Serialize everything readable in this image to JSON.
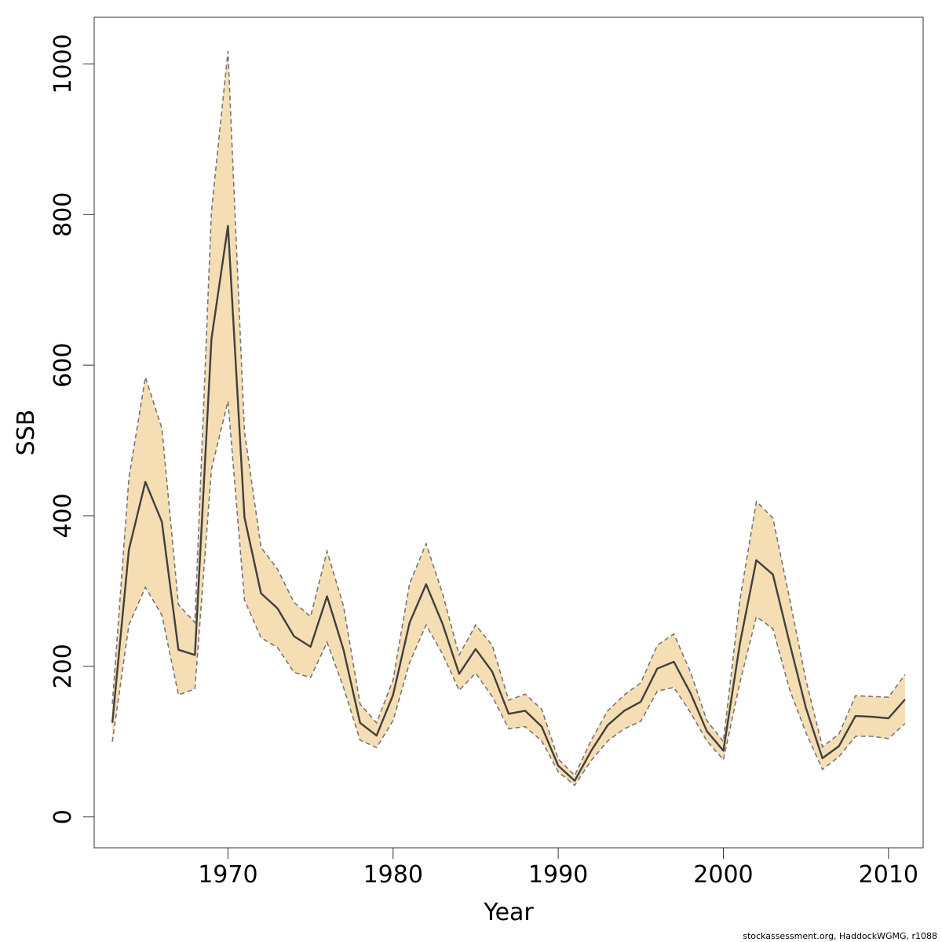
{
  "chart_data": {
    "type": "area",
    "xlabel": "Year",
    "ylabel": "SSB",
    "xlim": [
      1961.9,
      2012.1
    ],
    "ylim": [
      -41,
      1062
    ],
    "x_ticks": [
      1970,
      1980,
      1990,
      2000,
      2010
    ],
    "y_ticks": [
      0,
      200,
      400,
      600,
      800,
      1000
    ],
    "grid": false,
    "colors": {
      "band": "#f5deb3",
      "bound_line": "#777777",
      "estimate_line": "#404040"
    },
    "series": [
      {
        "name": "",
        "x": [
          1963,
          1964,
          1965,
          1966,
          1967,
          1968,
          1969,
          1970,
          1971,
          1972,
          1973,
          1974,
          1975,
          1976,
          1977,
          1978,
          1979,
          1980,
          1981,
          1982,
          1983,
          1984,
          1985,
          1986,
          1987,
          1988,
          1989,
          1990,
          1991,
          1992,
          1993,
          1994,
          1995,
          1996,
          1997,
          1998,
          1999,
          2000,
          2001,
          2002,
          2003,
          2004,
          2005,
          2006,
          2007,
          2008,
          2009,
          2010,
          2011
        ],
        "estimate": [
          125,
          355,
          445,
          392,
          222,
          215,
          635,
          785,
          398,
          297,
          277,
          240,
          226,
          293,
          222,
          125,
          108,
          162,
          258,
          309,
          256,
          190,
          223,
          193,
          137,
          141,
          120,
          68,
          48,
          88,
          122,
          141,
          153,
          197,
          206,
          165,
          114,
          88,
          230,
          341,
          322,
          232,
          145,
          78,
          94,
          134,
          133,
          131,
          156
        ],
        "lower": [
          100,
          255,
          305,
          268,
          162,
          170,
          462,
          552,
          288,
          238,
          225,
          192,
          185,
          232,
          172,
          102,
          92,
          128,
          205,
          255,
          216,
          168,
          191,
          160,
          117,
          120,
          101,
          60,
          42,
          75,
          101,
          117,
          127,
          167,
          172,
          139,
          101,
          76,
          178,
          266,
          250,
          170,
          112,
          63,
          80,
          107,
          107,
          104,
          124
        ],
        "upper": [
          150,
          450,
          584,
          516,
          282,
          258,
          805,
          1017,
          512,
          358,
          329,
          285,
          266,
          353,
          280,
          150,
          125,
          182,
          310,
          363,
          296,
          215,
          255,
          228,
          155,
          163,
          143,
          77,
          55,
          102,
          141,
          162,
          178,
          228,
          243,
          193,
          128,
          100,
          288,
          419,
          397,
          291,
          182,
          93,
          110,
          161,
          160,
          159,
          189
        ]
      }
    ]
  },
  "footer": "stockassessment.org, HaddockWGMG, r1088"
}
